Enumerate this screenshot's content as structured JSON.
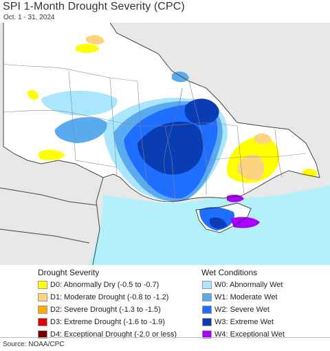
{
  "title": "SPI 1-Month Drought Severity (CPC)",
  "subtitle": "Oct. 1 - 31, 2024",
  "legend": {
    "drought_title": "Drought Severity",
    "wet_title": "Wet Conditions",
    "drought": [
      {
        "label": "D0: Abnormally Dry (-0.5 to -0.7)",
        "color": "#ffff00"
      },
      {
        "label": "D1: Moderate Drought (-0.8 to -1.2)",
        "color": "#fcd37f"
      },
      {
        "label": "D2: Severe Drought (-1.3 to -1.5)",
        "color": "#ffaa00"
      },
      {
        "label": "D3: Extreme Drought (-1.6 to -1.9)",
        "color": "#e60000"
      },
      {
        "label": "D4: Exceptional Drought (-2.0 or less)",
        "color": "#730000"
      }
    ],
    "wet": [
      {
        "label": "W0: Abnormally Wet",
        "color": "#aae6ff"
      },
      {
        "label": "W1: Moderate Wet",
        "color": "#5aaaf0"
      },
      {
        "label": "W2: Severe Wet",
        "color": "#1e6eff"
      },
      {
        "label": "W3: Extreme Wet",
        "color": "#0a3cb4"
      },
      {
        "label": "W4: Exceptional Wet",
        "color": "#aa00ff"
      }
    ]
  },
  "source": "Source: NOAA/CPC",
  "colors": {
    "sea": "#b4f0fa",
    "land_outside": "#e8e8e8",
    "land_inside": "#ffffff"
  }
}
